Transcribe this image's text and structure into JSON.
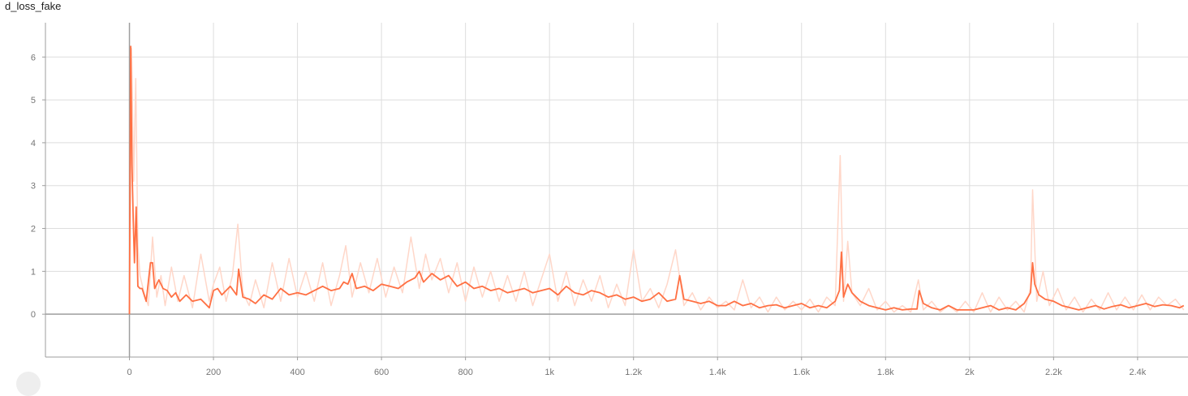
{
  "card": {
    "title": "d_loss_fake"
  },
  "colors": {
    "smoothed": "#ff7043",
    "raw": "#ffd7c9",
    "grid": "#dddddd",
    "axis": "#9e9e9e",
    "label": "#757575"
  },
  "chart_data": {
    "type": "line",
    "title": "d_loss_fake",
    "xlabel": "",
    "ylabel": "",
    "xlim": [
      -200,
      2520
    ],
    "ylim": [
      -1,
      6.8
    ],
    "grid": true,
    "x_ticks": [
      {
        "value": 0,
        "label": "0"
      },
      {
        "value": 200,
        "label": "200"
      },
      {
        "value": 400,
        "label": "400"
      },
      {
        "value": 600,
        "label": "600"
      },
      {
        "value": 800,
        "label": "800"
      },
      {
        "value": 1000,
        "label": "1k"
      },
      {
        "value": 1200,
        "label": "1.2k"
      },
      {
        "value": 1400,
        "label": "1.4k"
      },
      {
        "value": 1600,
        "label": "1.6k"
      },
      {
        "value": 1800,
        "label": "1.8k"
      },
      {
        "value": 2000,
        "label": "2k"
      },
      {
        "value": 2200,
        "label": "2.2k"
      },
      {
        "value": 2400,
        "label": "2.4k"
      }
    ],
    "y_ticks": [
      {
        "value": 0,
        "label": "0"
      },
      {
        "value": 1,
        "label": "1"
      },
      {
        "value": 2,
        "label": "2"
      },
      {
        "value": 3,
        "label": "3"
      },
      {
        "value": 4,
        "label": "4"
      },
      {
        "value": 5,
        "label": "5"
      },
      {
        "value": 6,
        "label": "6"
      }
    ],
    "series": [
      {
        "role": "raw",
        "x": [
          0,
          5,
          10,
          15,
          20,
          25,
          35,
          45,
          55,
          65,
          75,
          85,
          100,
          115,
          130,
          150,
          170,
          190,
          200,
          215,
          230,
          245,
          258,
          270,
          285,
          300,
          320,
          340,
          360,
          380,
          400,
          420,
          440,
          460,
          480,
          500,
          515,
          530,
          550,
          570,
          590,
          610,
          630,
          650,
          670,
          690,
          705,
          720,
          740,
          760,
          780,
          800,
          820,
          840,
          860,
          880,
          900,
          920,
          940,
          960,
          980,
          1000,
          1020,
          1040,
          1060,
          1080,
          1100,
          1120,
          1140,
          1160,
          1180,
          1200,
          1220,
          1240,
          1260,
          1280,
          1300,
          1320,
          1340,
          1360,
          1380,
          1400,
          1420,
          1440,
          1460,
          1480,
          1500,
          1520,
          1540,
          1560,
          1580,
          1600,
          1620,
          1640,
          1660,
          1680,
          1692,
          1700,
          1710,
          1720,
          1740,
          1760,
          1780,
          1800,
          1820,
          1840,
          1860,
          1878,
          1890,
          1910,
          1930,
          1950,
          1970,
          1990,
          2010,
          2030,
          2050,
          2070,
          2090,
          2110,
          2130,
          2145,
          2150,
          2160,
          2175,
          2190,
          2210,
          2230,
          2250,
          2270,
          2290,
          2310,
          2330,
          2350,
          2370,
          2390,
          2410,
          2430,
          2450,
          2470,
          2490,
          2510
        ],
        "y": [
          0.2,
          6.2,
          3.1,
          5.5,
          1.6,
          0.9,
          0.5,
          0.2,
          1.8,
          0.4,
          0.9,
          0.2,
          1.1,
          0.3,
          0.9,
          0.15,
          1.4,
          0.3,
          0.7,
          1.1,
          0.3,
          0.9,
          2.1,
          0.5,
          0.2,
          0.8,
          0.15,
          1.2,
          0.3,
          1.3,
          0.4,
          1.0,
          0.3,
          1.2,
          0.2,
          0.9,
          1.6,
          0.4,
          1.2,
          0.5,
          1.3,
          0.4,
          1.1,
          0.5,
          1.8,
          0.6,
          1.4,
          0.8,
          1.3,
          0.5,
          1.2,
          0.3,
          1.1,
          0.4,
          1.0,
          0.3,
          0.9,
          0.3,
          1.0,
          0.2,
          0.8,
          1.4,
          0.3,
          1.0,
          0.2,
          0.8,
          0.3,
          0.9,
          0.15,
          0.7,
          0.2,
          1.5,
          0.3,
          0.6,
          0.15,
          0.7,
          1.5,
          0.2,
          0.5,
          0.1,
          0.4,
          0.15,
          0.3,
          0.1,
          0.8,
          0.15,
          0.4,
          0.05,
          0.4,
          0.1,
          0.3,
          0.1,
          0.35,
          0.05,
          0.4,
          0.2,
          3.7,
          0.3,
          1.7,
          0.5,
          0.2,
          0.6,
          0.1,
          0.3,
          0.05,
          0.2,
          0.05,
          0.8,
          0.1,
          0.3,
          0.05,
          0.2,
          0.05,
          0.3,
          0.05,
          0.5,
          0.05,
          0.4,
          0.1,
          0.3,
          0.05,
          0.6,
          2.9,
          0.3,
          1.0,
          0.2,
          0.6,
          0.1,
          0.4,
          0.05,
          0.35,
          0.1,
          0.5,
          0.1,
          0.4,
          0.1,
          0.45,
          0.1,
          0.4,
          0.2,
          0.35,
          0.1
        ]
      },
      {
        "role": "smoothed",
        "x": [
          0,
          3,
          6,
          9,
          12,
          16,
          20,
          25,
          30,
          40,
          50,
          55,
          60,
          70,
          80,
          90,
          100,
          110,
          120,
          135,
          150,
          170,
          190,
          200,
          210,
          220,
          240,
          255,
          260,
          270,
          285,
          300,
          320,
          340,
          360,
          380,
          400,
          420,
          440,
          460,
          480,
          500,
          510,
          520,
          530,
          540,
          560,
          580,
          600,
          620,
          640,
          660,
          680,
          690,
          700,
          720,
          740,
          760,
          780,
          800,
          820,
          840,
          860,
          880,
          900,
          920,
          940,
          960,
          980,
          1000,
          1020,
          1040,
          1060,
          1080,
          1100,
          1120,
          1140,
          1160,
          1180,
          1200,
          1220,
          1240,
          1260,
          1280,
          1300,
          1310,
          1320,
          1340,
          1360,
          1380,
          1400,
          1420,
          1440,
          1460,
          1480,
          1500,
          1520,
          1540,
          1560,
          1580,
          1600,
          1620,
          1640,
          1660,
          1680,
          1690,
          1695,
          1700,
          1710,
          1720,
          1740,
          1760,
          1780,
          1800,
          1820,
          1840,
          1860,
          1875,
          1880,
          1890,
          1910,
          1930,
          1950,
          1970,
          1990,
          2010,
          2030,
          2050,
          2070,
          2090,
          2110,
          2130,
          2145,
          2150,
          2155,
          2165,
          2180,
          2200,
          2220,
          2240,
          2260,
          2280,
          2300,
          2320,
          2340,
          2360,
          2380,
          2400,
          2420,
          2440,
          2460,
          2480,
          2500,
          2510
        ],
        "y": [
          0.0,
          6.25,
          3.5,
          2.2,
          1.2,
          2.5,
          0.65,
          0.6,
          0.6,
          0.3,
          1.2,
          1.2,
          0.6,
          0.8,
          0.6,
          0.55,
          0.4,
          0.5,
          0.3,
          0.45,
          0.3,
          0.35,
          0.15,
          0.55,
          0.6,
          0.45,
          0.65,
          0.45,
          1.05,
          0.4,
          0.35,
          0.25,
          0.45,
          0.35,
          0.6,
          0.45,
          0.5,
          0.45,
          0.55,
          0.65,
          0.55,
          0.6,
          0.75,
          0.7,
          0.95,
          0.6,
          0.65,
          0.55,
          0.7,
          0.65,
          0.6,
          0.75,
          0.85,
          1.0,
          0.75,
          0.95,
          0.8,
          0.9,
          0.65,
          0.75,
          0.6,
          0.65,
          0.55,
          0.6,
          0.5,
          0.55,
          0.6,
          0.5,
          0.55,
          0.6,
          0.45,
          0.65,
          0.5,
          0.45,
          0.55,
          0.5,
          0.4,
          0.45,
          0.35,
          0.4,
          0.3,
          0.35,
          0.5,
          0.3,
          0.35,
          0.9,
          0.35,
          0.3,
          0.25,
          0.3,
          0.2,
          0.2,
          0.3,
          0.2,
          0.25,
          0.15,
          0.2,
          0.22,
          0.15,
          0.2,
          0.25,
          0.15,
          0.2,
          0.15,
          0.3,
          0.55,
          1.45,
          0.4,
          0.7,
          0.5,
          0.3,
          0.2,
          0.15,
          0.1,
          0.15,
          0.1,
          0.12,
          0.12,
          0.55,
          0.25,
          0.15,
          0.1,
          0.2,
          0.1,
          0.1,
          0.1,
          0.15,
          0.2,
          0.1,
          0.15,
          0.1,
          0.25,
          0.5,
          1.2,
          0.7,
          0.45,
          0.35,
          0.3,
          0.2,
          0.15,
          0.1,
          0.15,
          0.2,
          0.12,
          0.18,
          0.22,
          0.15,
          0.2,
          0.25,
          0.18,
          0.22,
          0.2,
          0.15,
          0.2
        ]
      }
    ]
  }
}
